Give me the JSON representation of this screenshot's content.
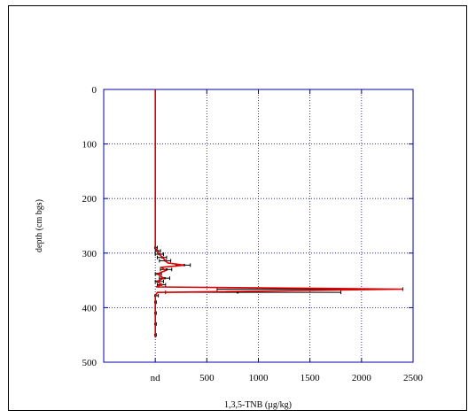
{
  "chart_data": {
    "type": "line",
    "title": "",
    "xlabel": "1,3,5-TNB (µg/kg)",
    "ylabel": "depth (cm bgs)",
    "xlim": [
      -500,
      2500
    ],
    "ylim": [
      500,
      0
    ],
    "y_inverted": true,
    "grid": true,
    "x_ticks": [
      {
        "value": 0,
        "label": "nd"
      },
      {
        "value": 500,
        "label": "500"
      },
      {
        "value": 1000,
        "label": "1000"
      },
      {
        "value": 1500,
        "label": "1500"
      },
      {
        "value": 2000,
        "label": "2000"
      },
      {
        "value": 2500,
        "label": "2500"
      }
    ],
    "y_ticks": [
      {
        "value": 0,
        "label": "0"
      },
      {
        "value": 100,
        "label": "100"
      },
      {
        "value": 200,
        "label": "200"
      },
      {
        "value": 300,
        "label": "300"
      },
      {
        "value": 400,
        "label": "400"
      },
      {
        "value": 500,
        "label": "500"
      }
    ],
    "series": [
      {
        "color": "#dd0000",
        "points": [
          {
            "x": 0,
            "y": 0
          },
          {
            "x": 0,
            "y": 290
          },
          {
            "x": 30,
            "y": 300
          },
          {
            "x": 80,
            "y": 310
          },
          {
            "x": 120,
            "y": 318
          },
          {
            "x": 280,
            "y": 322
          },
          {
            "x": 60,
            "y": 326
          },
          {
            "x": 100,
            "y": 332
          },
          {
            "x": 20,
            "y": 338
          },
          {
            "x": 80,
            "y": 346
          },
          {
            "x": 20,
            "y": 352
          },
          {
            "x": 60,
            "y": 358
          },
          {
            "x": 10,
            "y": 362
          },
          {
            "x": 2400,
            "y": 366
          },
          {
            "x": 20,
            "y": 372
          },
          {
            "x": 0,
            "y": 378
          },
          {
            "x": 0,
            "y": 455
          }
        ]
      }
    ],
    "error_points": [
      {
        "x": 0,
        "y": 290,
        "lo": 0,
        "hi": 20
      },
      {
        "x": 20,
        "y": 296,
        "lo": 0,
        "hi": 50
      },
      {
        "x": 40,
        "y": 302,
        "lo": 0,
        "hi": 80
      },
      {
        "x": 70,
        "y": 308,
        "lo": 20,
        "hi": 110
      },
      {
        "x": 100,
        "y": 314,
        "lo": 40,
        "hi": 150
      },
      {
        "x": 280,
        "y": 322,
        "lo": 200,
        "hi": 340
      },
      {
        "x": 110,
        "y": 330,
        "lo": 50,
        "hi": 160
      },
      {
        "x": 20,
        "y": 338,
        "lo": 0,
        "hi": 60
      },
      {
        "x": 90,
        "y": 346,
        "lo": 40,
        "hi": 140
      },
      {
        "x": 20,
        "y": 352,
        "lo": 0,
        "hi": 80
      },
      {
        "x": 60,
        "y": 358,
        "lo": 20,
        "hi": 100
      },
      {
        "x": 1500,
        "y": 366,
        "lo": 600,
        "hi": 2400
      },
      {
        "x": 800,
        "y": 372,
        "lo": 100,
        "hi": 1800
      },
      {
        "x": 0,
        "y": 378,
        "lo": 0,
        "hi": 30
      },
      {
        "x": 0,
        "y": 390,
        "lo": 0,
        "hi": 10
      },
      {
        "x": 0,
        "y": 410,
        "lo": 0,
        "hi": 10
      },
      {
        "x": 0,
        "y": 430,
        "lo": 0,
        "hi": 10
      },
      {
        "x": 0,
        "y": 450,
        "lo": 0,
        "hi": 10
      }
    ]
  }
}
